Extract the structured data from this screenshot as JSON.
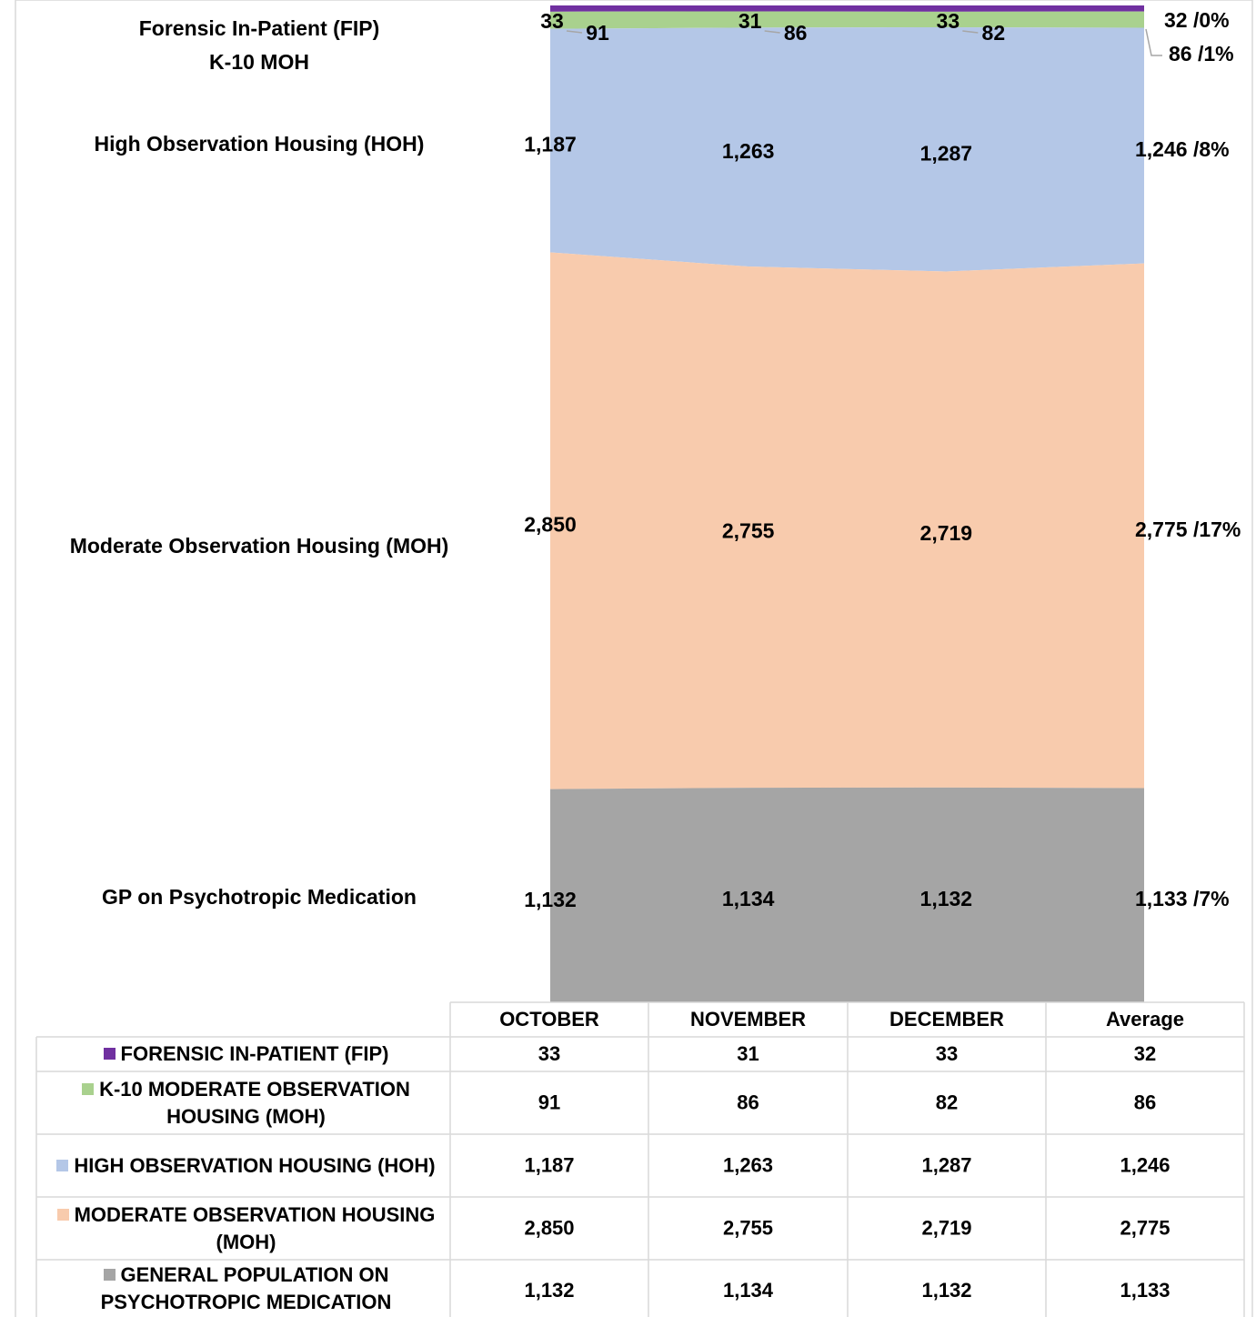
{
  "chart_data": {
    "type": "area_100",
    "categories": [
      "OCTOBER",
      "NOVEMBER",
      "DECEMBER",
      "Average"
    ],
    "series": [
      {
        "name": "Forensic In-Patient (FIP)",
        "table_label": "FORENSIC IN-PATIENT (FIP)",
        "color": "#7030a0",
        "values": [
          33,
          31,
          33,
          32
        ],
        "value_labels": [
          "33",
          "31",
          "33",
          "32"
        ],
        "share_label": "/0%"
      },
      {
        "name": "K-10 MOH",
        "table_label": "K-10 MODERATE OBSERVATION HOUSING (MOH)",
        "color": "#a9d18e",
        "values": [
          91,
          86,
          82,
          86
        ],
        "value_labels": [
          "91",
          "86",
          "82",
          "86"
        ],
        "share_label": "/1%"
      },
      {
        "name": "High Observation Housing (HOH)",
        "table_label": "HIGH OBSERVATION HOUSING (HOH)",
        "color": "#b4c7e7",
        "values": [
          1187,
          1263,
          1287,
          1246
        ],
        "value_labels": [
          "1,187",
          "1,263",
          "1,287",
          "1,246"
        ],
        "share_label": "/8%"
      },
      {
        "name": "Moderate Observation Housing (MOH)",
        "table_label": "MODERATE OBSERVATION HOUSING (MOH)",
        "color": "#f8cbad",
        "values": [
          2850,
          2755,
          2719,
          2775
        ],
        "value_labels": [
          "2,850",
          "2,755",
          "2,719",
          "2,775"
        ],
        "share_label": "/17%"
      },
      {
        "name": "GP on Psychotropic Medication",
        "table_label": "GENERAL POPULATION ON PSYCHOTROPIC MEDICATION",
        "color": "#a5a5a5",
        "values": [
          1132,
          1134,
          1132,
          1133
        ],
        "value_labels": [
          "1,132",
          "1,134",
          "1,132",
          "1,133"
        ],
        "share_label": "/7%"
      }
    ],
    "data_table": true
  }
}
